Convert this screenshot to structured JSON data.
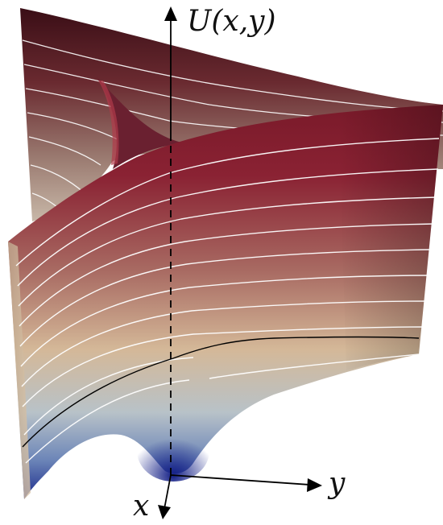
{
  "figure": {
    "axis_labels": {
      "u": "U(x,y)",
      "x": "x",
      "y": "y"
    },
    "colors": {
      "surface_top": "#4a1018",
      "surface_upper": "#8a2233",
      "surface_mid": "#c9ab8f",
      "surface_low": "#9fb3c6",
      "surface_bottom": "#1f2f8f",
      "back_sheet": "#5a2a30",
      "contour_line": "#ffffff",
      "highlight_contour": "#000000",
      "axis": "#000000"
    }
  }
}
